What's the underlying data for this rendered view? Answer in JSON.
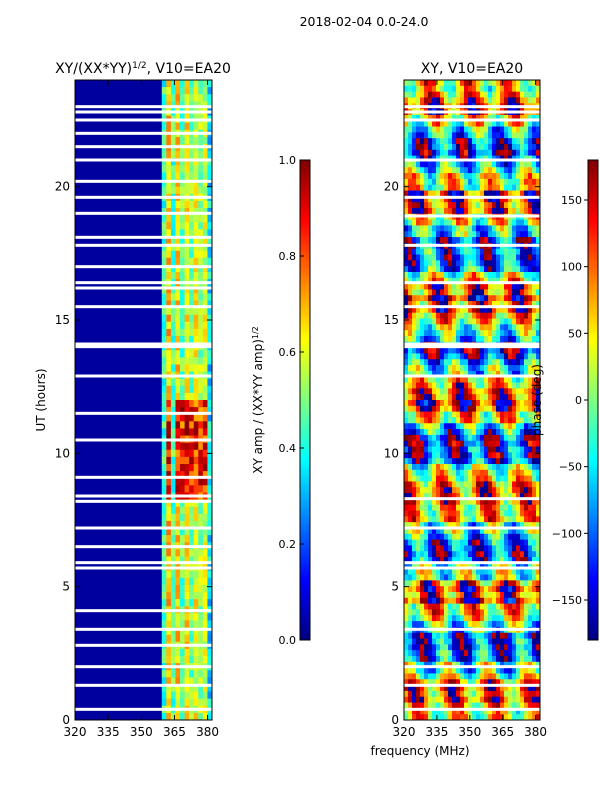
{
  "figure_title": "2018-02-04 0.0-24.0",
  "shared_xlabel": "frequency (MHz)",
  "colors": {
    "jet": [
      "#00007f",
      "#0000ff",
      "#007fff",
      "#00ffff",
      "#7fff7f",
      "#ffff00",
      "#ff7f00",
      "#ff0000",
      "#7f0000"
    ],
    "background": "#00008f",
    "gap": "#ffffff"
  },
  "chart_data": [
    {
      "type": "heatmap",
      "title": "XY/(XX*YY)",
      "title_sup": "1/2",
      "title_suffix": ", V10=EA20",
      "xlabel": "",
      "ylabel": "UT (hours)",
      "xlim": [
        320,
        382
      ],
      "ylim": [
        0,
        24
      ],
      "xticks": [
        "320",
        "335",
        "350",
        "365",
        "380"
      ],
      "xtick_values": [
        320,
        335,
        350,
        365,
        380
      ],
      "yticks": [
        "0",
        "5",
        "10",
        "15",
        "20"
      ],
      "ytick_values": [
        0,
        5,
        10,
        15,
        20
      ],
      "colorbar": {
        "label": "XY amp / (XX*YY amp)",
        "label_sup": "1/2",
        "range": [
          0.0,
          1.0
        ],
        "ticks": [
          "0.0",
          "0.2",
          "0.4",
          "0.6",
          "0.8",
          "1.0"
        ],
        "tick_values": [
          0.0,
          0.2,
          0.4,
          0.6,
          0.8,
          1.0
        ]
      },
      "low_value": 0.03,
      "active_band_mhz": [
        360,
        382
      ],
      "bright_channels_mhz": [
        362,
        366,
        370,
        374,
        378
      ],
      "enhanced_hours": [
        8.2,
        12.0
      ],
      "enhanced_value": 0.85,
      "gap_hours": [
        0.4,
        1.3,
        2.0,
        2.8,
        3.4,
        4.1,
        5.7,
        5.9,
        6.5,
        7.2,
        8.2,
        8.4,
        9.1,
        10.5,
        11.5,
        12.9,
        14.0,
        14.1,
        15.5,
        16.2,
        16.4,
        17.0,
        17.8,
        18.1,
        19.0,
        19.6,
        20.2,
        21.0,
        21.5,
        22.0,
        22.5,
        22.8,
        23.0
      ]
    },
    {
      "type": "heatmap",
      "title": "XY, V10=EA20",
      "xlabel": "",
      "ylabel": "",
      "xlim": [
        320,
        382
      ],
      "ylim": [
        0,
        24
      ],
      "xticks": [
        "320",
        "335",
        "350",
        "365",
        "380"
      ],
      "xtick_values": [
        320,
        335,
        350,
        365,
        380
      ],
      "yticks": [
        "0",
        "5",
        "10",
        "15",
        "20"
      ],
      "ytick_values": [
        0,
        5,
        10,
        15,
        20
      ],
      "colorbar": {
        "label": "phase (deg)",
        "range": [
          -180,
          180
        ],
        "ticks": [
          "−150",
          "−100",
          "−50",
          "0",
          "50",
          "100",
          "150"
        ],
        "tick_values": [
          -150,
          -100,
          -50,
          0,
          50,
          100,
          150
        ]
      },
      "gap_hours": [
        0.4,
        1.3,
        2.0,
        3.4,
        5.7,
        5.9,
        7.2,
        8.3,
        12.9,
        14.0,
        14.1,
        15.5,
        16.4,
        17.8,
        18.9,
        19.6,
        21.0,
        22.5,
        22.8,
        23.0
      ]
    }
  ]
}
